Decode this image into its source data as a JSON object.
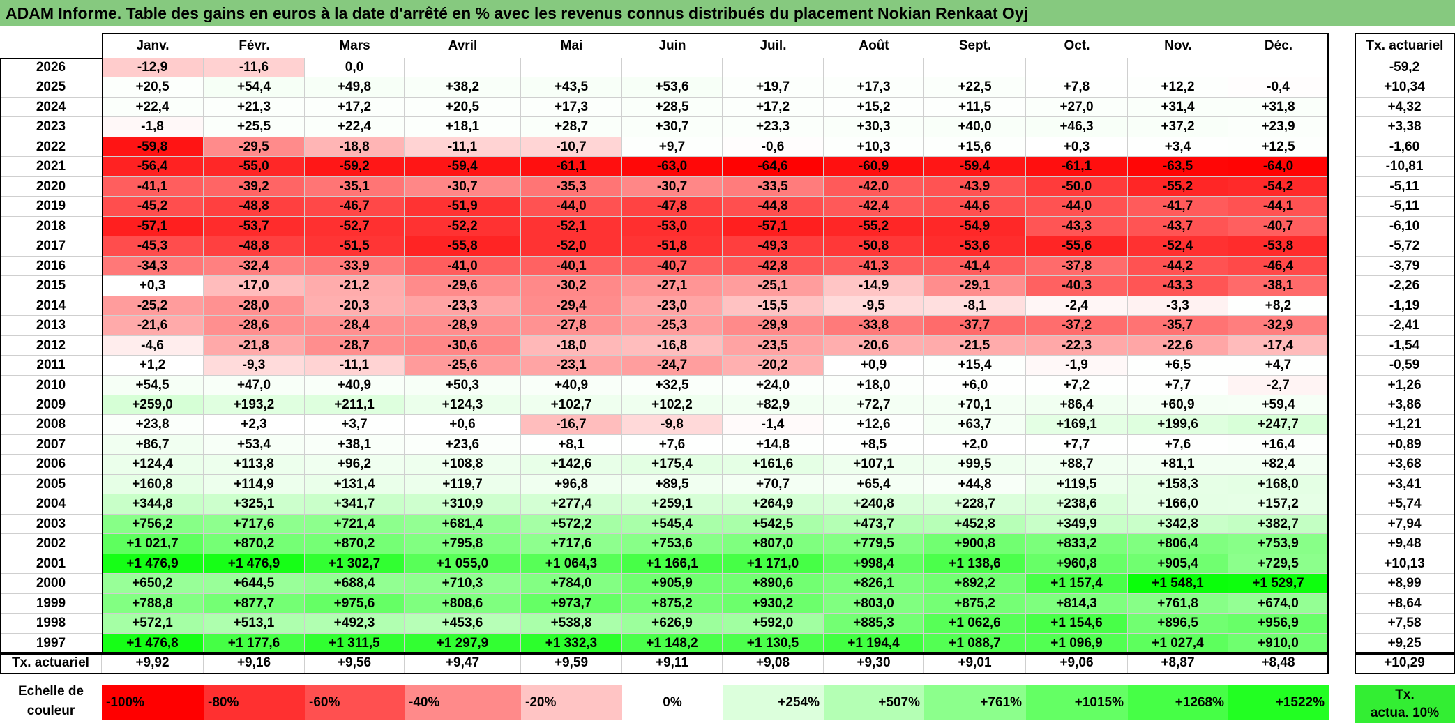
{
  "title": "ADAM Informe. Table des gains en euros à la date d'arrêté en % avec les revenus connus distribués du placement Nokian Renkaat Oyj",
  "chart_data": {
    "type": "heatmap",
    "title": "ADAM Informe. Table des gains en euros à la date d'arrêté en % avec les revenus connus distribués du placement Nokian Renkaat Oyj",
    "columns": [
      "Janv.",
      "Févr.",
      "Mars",
      "Avril",
      "Mai",
      "Juin",
      "Juil.",
      "Août",
      "Sept.",
      "Oct.",
      "Nov.",
      "Déc."
    ],
    "rate_header": "Tx. actuariel",
    "rows": [
      {
        "year": "2026",
        "values": [
          "-12,9",
          "-11,6",
          "0,0",
          "",
          "",
          "",
          "",
          "",
          "",
          "",
          "",
          ""
        ],
        "rate": "-59,2"
      },
      {
        "year": "2025",
        "values": [
          "+20,5",
          "+54,4",
          "+49,8",
          "+38,2",
          "+43,5",
          "+53,6",
          "+19,7",
          "+17,3",
          "+22,5",
          "+7,8",
          "+12,2",
          "-0,4"
        ],
        "rate": "+10,34"
      },
      {
        "year": "2024",
        "values": [
          "+22,4",
          "+21,3",
          "+17,2",
          "+20,5",
          "+17,3",
          "+28,5",
          "+17,2",
          "+15,2",
          "+11,5",
          "+27,0",
          "+31,4",
          "+31,8"
        ],
        "rate": "+4,32"
      },
      {
        "year": "2023",
        "values": [
          "-1,8",
          "+25,5",
          "+22,4",
          "+18,1",
          "+28,7",
          "+30,7",
          "+23,3",
          "+30,3",
          "+40,0",
          "+46,3",
          "+37,2",
          "+23,9"
        ],
        "rate": "+3,38"
      },
      {
        "year": "2022",
        "values": [
          "-59,8",
          "-29,5",
          "-18,8",
          "-11,1",
          "-10,7",
          "+9,7",
          "-0,6",
          "+10,3",
          "+15,6",
          "+0,3",
          "+3,4",
          "+12,5"
        ],
        "rate": "-1,60"
      },
      {
        "year": "2021",
        "values": [
          "-56,4",
          "-55,0",
          "-59,2",
          "-59,4",
          "-61,1",
          "-63,0",
          "-64,6",
          "-60,9",
          "-59,4",
          "-61,1",
          "-63,5",
          "-64,0"
        ],
        "rate": "-10,81"
      },
      {
        "year": "2020",
        "values": [
          "-41,1",
          "-39,2",
          "-35,1",
          "-30,7",
          "-35,3",
          "-30,7",
          "-33,5",
          "-42,0",
          "-43,9",
          "-50,0",
          "-55,2",
          "-54,2"
        ],
        "rate": "-5,11"
      },
      {
        "year": "2019",
        "values": [
          "-45,2",
          "-48,8",
          "-46,7",
          "-51,9",
          "-44,0",
          "-47,8",
          "-44,8",
          "-42,4",
          "-44,6",
          "-44,0",
          "-41,7",
          "-44,1"
        ],
        "rate": "-5,11"
      },
      {
        "year": "2018",
        "values": [
          "-57,1",
          "-53,7",
          "-52,7",
          "-52,2",
          "-52,1",
          "-53,0",
          "-57,1",
          "-55,2",
          "-54,9",
          "-43,3",
          "-43,7",
          "-40,7"
        ],
        "rate": "-6,10"
      },
      {
        "year": "2017",
        "values": [
          "-45,3",
          "-48,8",
          "-51,5",
          "-55,8",
          "-52,0",
          "-51,8",
          "-49,3",
          "-50,8",
          "-53,6",
          "-55,6",
          "-52,4",
          "-53,8"
        ],
        "rate": "-5,72"
      },
      {
        "year": "2016",
        "values": [
          "-34,3",
          "-32,4",
          "-33,9",
          "-41,0",
          "-40,1",
          "-40,7",
          "-42,8",
          "-41,3",
          "-41,4",
          "-37,8",
          "-44,2",
          "-46,4"
        ],
        "rate": "-3,79"
      },
      {
        "year": "2015",
        "values": [
          "+0,3",
          "-17,0",
          "-21,2",
          "-29,6",
          "-30,2",
          "-27,1",
          "-25,1",
          "-14,9",
          "-29,1",
          "-40,3",
          "-43,3",
          "-38,1"
        ],
        "rate": "-2,26"
      },
      {
        "year": "2014",
        "values": [
          "-25,2",
          "-28,0",
          "-20,3",
          "-23,3",
          "-29,4",
          "-23,0",
          "-15,5",
          "-9,5",
          "-8,1",
          "-2,4",
          "-3,3",
          "+8,2"
        ],
        "rate": "-1,19"
      },
      {
        "year": "2013",
        "values": [
          "-21,6",
          "-28,6",
          "-28,4",
          "-28,9",
          "-27,8",
          "-25,3",
          "-29,9",
          "-33,8",
          "-37,7",
          "-37,2",
          "-35,7",
          "-32,9"
        ],
        "rate": "-2,41"
      },
      {
        "year": "2012",
        "values": [
          "-4,6",
          "-21,8",
          "-28,7",
          "-30,6",
          "-18,0",
          "-16,8",
          "-23,5",
          "-20,6",
          "-21,5",
          "-22,3",
          "-22,6",
          "-17,4"
        ],
        "rate": "-1,54"
      },
      {
        "year": "2011",
        "values": [
          "+1,2",
          "-9,3",
          "-11,1",
          "-25,6",
          "-23,1",
          "-24,7",
          "-20,2",
          "+0,9",
          "+15,4",
          "-1,9",
          "+6,5",
          "+4,7"
        ],
        "rate": "-0,59"
      },
      {
        "year": "2010",
        "values": [
          "+54,5",
          "+47,0",
          "+40,9",
          "+50,3",
          "+40,9",
          "+32,5",
          "+24,0",
          "+18,0",
          "+6,0",
          "+7,2",
          "+7,7",
          "-2,7"
        ],
        "rate": "+1,26"
      },
      {
        "year": "2009",
        "values": [
          "+259,0",
          "+193,2",
          "+211,1",
          "+124,3",
          "+102,7",
          "+102,2",
          "+82,9",
          "+72,7",
          "+70,1",
          "+86,4",
          "+60,9",
          "+59,4"
        ],
        "rate": "+3,86"
      },
      {
        "year": "2008",
        "values": [
          "+23,8",
          "+2,3",
          "+3,7",
          "+0,6",
          "-16,7",
          "-9,8",
          "-1,4",
          "+12,6",
          "+63,7",
          "+169,1",
          "+199,6",
          "+247,7"
        ],
        "rate": "+1,21"
      },
      {
        "year": "2007",
        "values": [
          "+86,7",
          "+53,4",
          "+38,1",
          "+23,6",
          "+8,1",
          "+7,6",
          "+14,8",
          "+8,5",
          "+2,0",
          "+7,7",
          "+7,6",
          "+16,4"
        ],
        "rate": "+0,89"
      },
      {
        "year": "2006",
        "values": [
          "+124,4",
          "+113,8",
          "+96,2",
          "+108,8",
          "+142,6",
          "+175,4",
          "+161,6",
          "+107,1",
          "+99,5",
          "+88,7",
          "+81,1",
          "+82,4"
        ],
        "rate": "+3,68"
      },
      {
        "year": "2005",
        "values": [
          "+160,8",
          "+114,9",
          "+131,4",
          "+119,7",
          "+96,8",
          "+89,5",
          "+70,7",
          "+65,4",
          "+44,8",
          "+119,5",
          "+158,3",
          "+168,0"
        ],
        "rate": "+3,41"
      },
      {
        "year": "2004",
        "values": [
          "+344,8",
          "+325,1",
          "+341,7",
          "+310,9",
          "+277,4",
          "+259,1",
          "+264,9",
          "+240,8",
          "+228,7",
          "+238,6",
          "+166,0",
          "+157,2"
        ],
        "rate": "+5,74"
      },
      {
        "year": "2003",
        "values": [
          "+756,2",
          "+717,6",
          "+721,4",
          "+681,4",
          "+572,2",
          "+545,4",
          "+542,5",
          "+473,7",
          "+452,8",
          "+349,9",
          "+342,8",
          "+382,7"
        ],
        "rate": "+7,94"
      },
      {
        "year": "2002",
        "values": [
          "+1 021,7",
          "+870,2",
          "+870,2",
          "+795,8",
          "+717,6",
          "+753,6",
          "+807,0",
          "+779,5",
          "+900,8",
          "+833,2",
          "+806,4",
          "+753,9"
        ],
        "rate": "+9,48"
      },
      {
        "year": "2001",
        "values": [
          "+1 476,9",
          "+1 476,9",
          "+1 302,7",
          "+1 055,0",
          "+1 064,3",
          "+1 166,1",
          "+1 171,0",
          "+998,4",
          "+1 138,6",
          "+960,8",
          "+905,4",
          "+729,5"
        ],
        "rate": "+10,13"
      },
      {
        "year": "2000",
        "values": [
          "+650,2",
          "+644,5",
          "+688,4",
          "+710,3",
          "+784,0",
          "+905,9",
          "+890,6",
          "+826,1",
          "+892,2",
          "+1 157,4",
          "+1 548,1",
          "+1 529,7"
        ],
        "rate": "+8,99"
      },
      {
        "year": "1999",
        "values": [
          "+788,8",
          "+877,7",
          "+975,6",
          "+808,6",
          "+973,7",
          "+875,2",
          "+930,2",
          "+803,0",
          "+875,2",
          "+814,3",
          "+761,8",
          "+674,0"
        ],
        "rate": "+8,64"
      },
      {
        "year": "1998",
        "values": [
          "+572,1",
          "+513,1",
          "+492,3",
          "+453,6",
          "+538,8",
          "+626,9",
          "+592,0",
          "+885,3",
          "+1 062,6",
          "+1 154,6",
          "+896,5",
          "+956,9"
        ],
        "rate": "+7,58"
      },
      {
        "year": "1997",
        "values": [
          "+1 476,8",
          "+1 177,6",
          "+1 311,5",
          "+1 297,9",
          "+1 332,3",
          "+1 148,2",
          "+1 130,5",
          "+1 194,4",
          "+1 088,7",
          "+1 096,9",
          "+1 027,4",
          "+910,0"
        ],
        "rate": "+9,25"
      }
    ],
    "totals": {
      "label": "Tx. actuariel",
      "values": [
        "+9,92",
        "+9,16",
        "+9,56",
        "+9,47",
        "+9,59",
        "+9,11",
        "+9,08",
        "+9,30",
        "+9,01",
        "+9,06",
        "+8,87",
        "+8,48"
      ],
      "rate": "+10,29"
    },
    "scale": {
      "label_line1": "Echelle de",
      "label_line2": "couleur",
      "items": [
        {
          "label": "-100%",
          "color": "#FF0000",
          "align": "left"
        },
        {
          "label": "-80%",
          "color": "#FF3030",
          "align": "left"
        },
        {
          "label": "-60%",
          "color": "#FF5050",
          "align": "left"
        },
        {
          "label": "-40%",
          "color": "#FF8A8A",
          "align": "left"
        },
        {
          "label": "-20%",
          "color": "#FFC4C4",
          "align": "left"
        },
        {
          "label": "0%",
          "color": "#FFFFFF",
          "align": "center"
        },
        {
          "label": "+254%",
          "color": "#DCFFDC",
          "align": "right"
        },
        {
          "label": "+507%",
          "color": "#B4FFB4",
          "align": "right"
        },
        {
          "label": "+761%",
          "color": "#8CFF8C",
          "align": "right"
        },
        {
          "label": "+1015%",
          "color": "#64FF64",
          "align": "right"
        },
        {
          "label": "+1268%",
          "color": "#46FF46",
          "align": "right"
        },
        {
          "label": "+1522%",
          "color": "#22FF22",
          "align": "right"
        }
      ],
      "rate_line1": "Tx.",
      "rate_line2": "actua. 10%",
      "rate_color": "#33EE33"
    }
  }
}
